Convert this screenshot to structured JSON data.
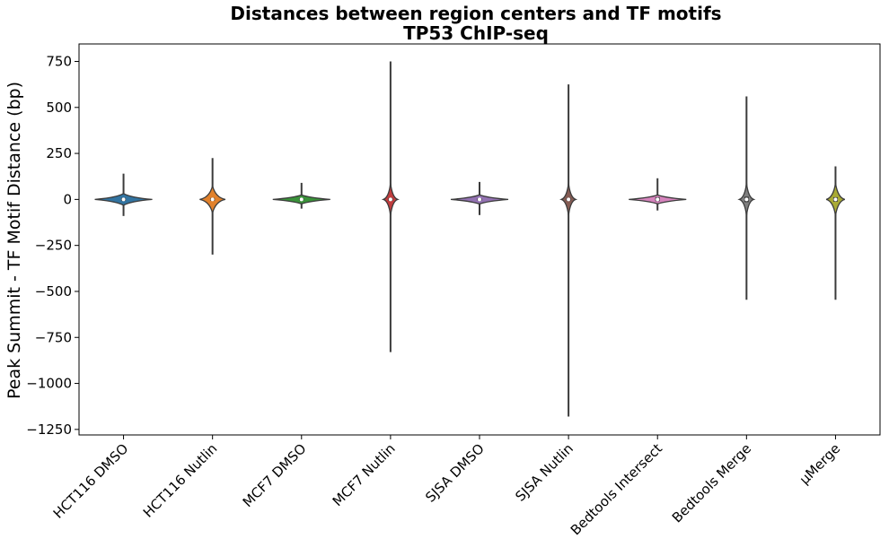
{
  "chart_data": {
    "type": "violin",
    "title": "Distances between region centers and TF motifs",
    "subtitle": "TP53 ChIP-seq",
    "xlabel": "",
    "ylabel": "Peak Summit - TF Motif Distance (bp)",
    "ylim": [
      -1280,
      845
    ],
    "yticks": [
      750,
      500,
      250,
      0,
      -250,
      -500,
      -750,
      -1000,
      -1250
    ],
    "ytick_labels": [
      "750",
      "500",
      "250",
      "0",
      "−250",
      "−500",
      "−750",
      "−1000",
      "−1250"
    ],
    "grid": false,
    "legend": "none",
    "categories": [
      "HCT116 DMSO",
      "HCT116 Nutlin",
      "MCF7 DMSO",
      "MCF7 Nutlin",
      "SJSA DMSO",
      "SJSA Nutlin",
      "Bedtools Intersect",
      "Bedtools Merge",
      "μMerge"
    ],
    "series": [
      {
        "category": "HCT116 DMSO",
        "min": -90,
        "max": 140,
        "median": 0,
        "q1": -8,
        "q3": 8,
        "color": "#3274a1"
      },
      {
        "category": "HCT116 Nutlin",
        "min": -300,
        "max": 225,
        "median": 0,
        "q1": -8,
        "q3": 8,
        "color": "#e1812c"
      },
      {
        "category": "MCF7 DMSO",
        "min": -50,
        "max": 90,
        "median": 0,
        "q1": -6,
        "q3": 6,
        "color": "#3a923a"
      },
      {
        "category": "MCF7 Nutlin",
        "min": -830,
        "max": 750,
        "median": 0,
        "q1": -8,
        "q3": 8,
        "color": "#c03d3e"
      },
      {
        "category": "SJSA DMSO",
        "min": -85,
        "max": 95,
        "median": 0,
        "q1": -6,
        "q3": 6,
        "color": "#9372b2"
      },
      {
        "category": "SJSA Nutlin",
        "min": -1180,
        "max": 625,
        "median": 0,
        "q1": -8,
        "q3": 8,
        "color": "#845b53"
      },
      {
        "category": "Bedtools Intersect",
        "min": -60,
        "max": 115,
        "median": 0,
        "q1": -10,
        "q3": 12,
        "color": "#d684bd"
      },
      {
        "category": "Bedtools Merge",
        "min": -545,
        "max": 560,
        "median": 0,
        "q1": -15,
        "q3": 15,
        "color": "#7f7f7f"
      },
      {
        "category": "μMerge",
        "min": -545,
        "max": 180,
        "median": 0,
        "q1": -12,
        "q3": 12,
        "color": "#a9aa35"
      }
    ]
  }
}
